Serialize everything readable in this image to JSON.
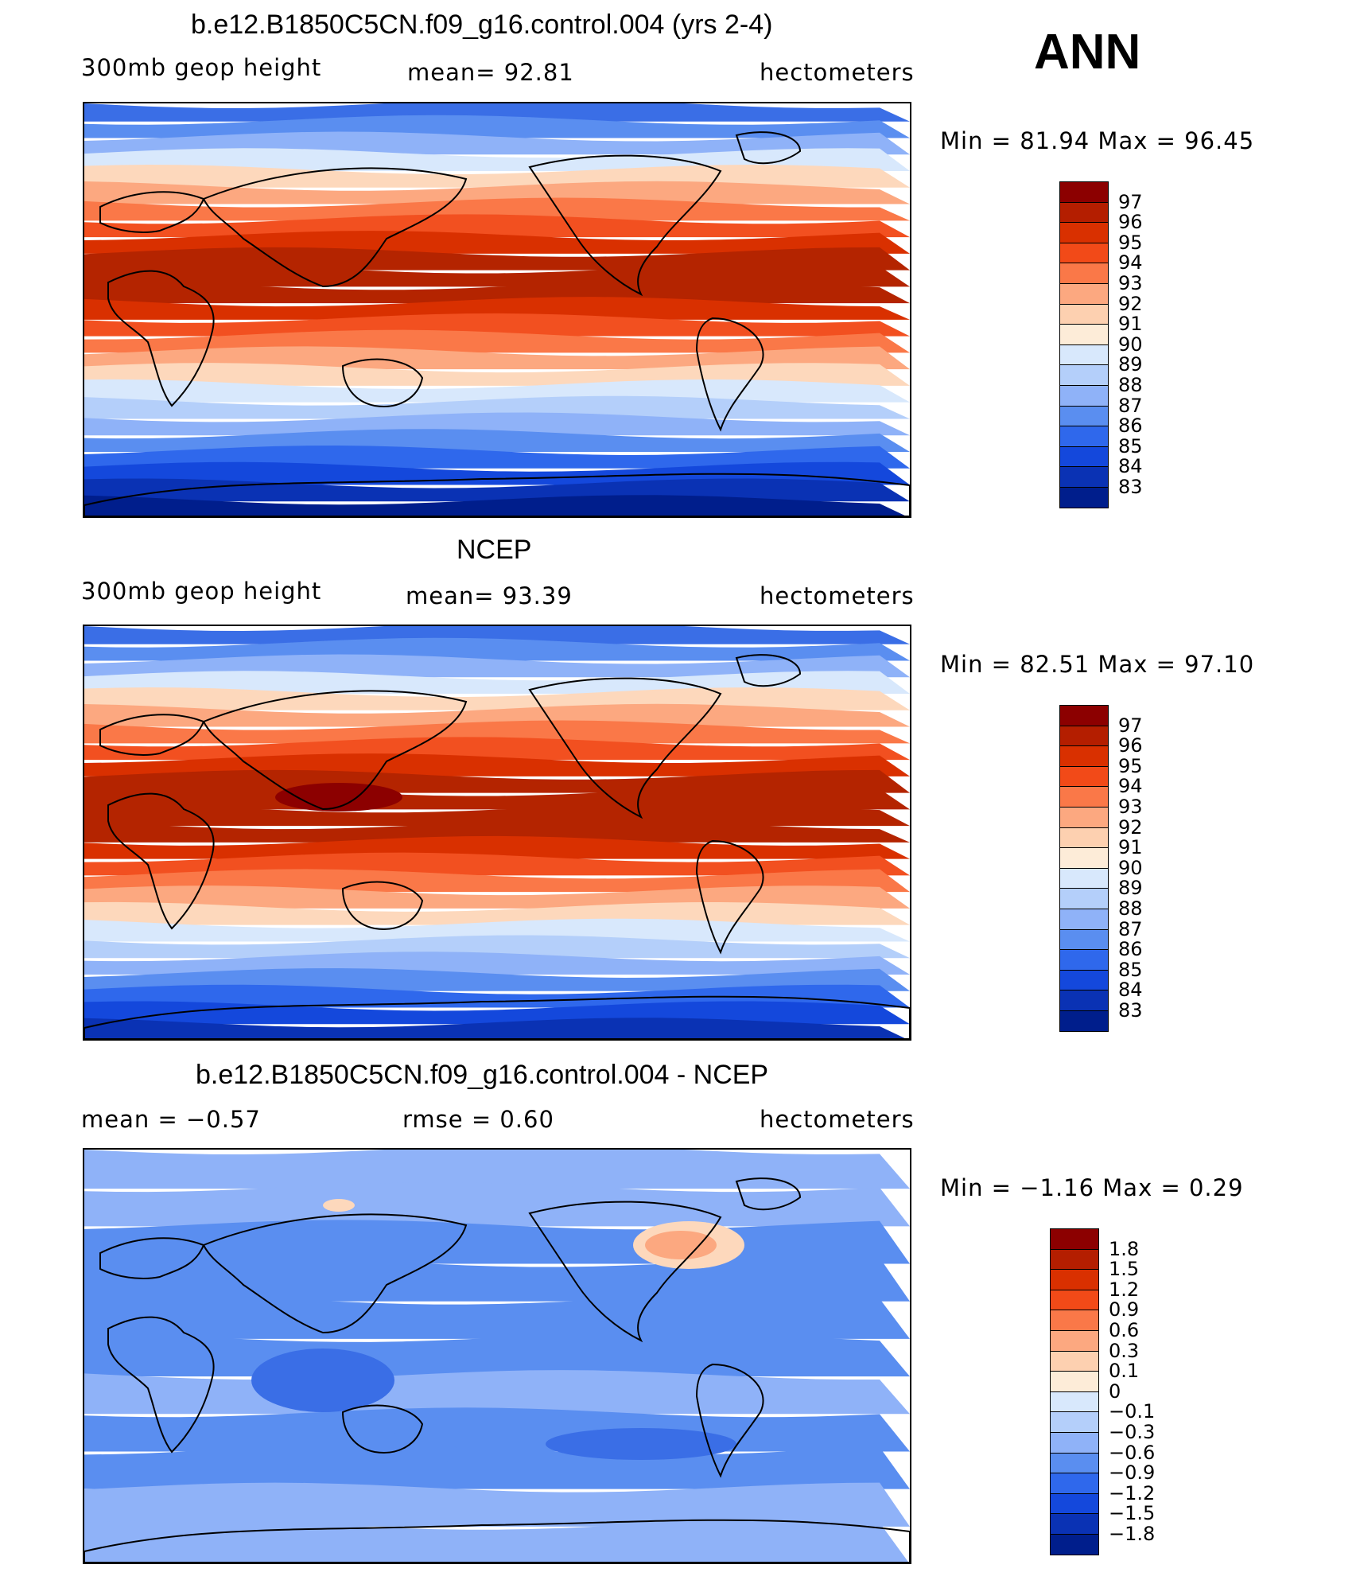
{
  "season_label": "ANN",
  "panels": [
    {
      "id": "model",
      "title": "b.e12.B1850C5CN.f09_g16.control.004 (yrs 2-4)",
      "left_label": "300mb  geop  height",
      "center_label": "mean=   92.81",
      "right_label": "hectometers",
      "min_max": "Min  =    81.94  Max  =    96.45",
      "legend_levels": [
        "97",
        "96",
        "95",
        "94",
        "93",
        "92",
        "91",
        "90",
        "89",
        "88",
        "87",
        "86",
        "85",
        "84",
        "83"
      ],
      "legend_colors": [
        "#8c0000",
        "#b41e00",
        "#d93000",
        "#f24a18",
        "#fa7848",
        "#fca880",
        "#fdd0b0",
        "#fdecd8",
        "#d8e8fc",
        "#b4cffa",
        "#8fb2f8",
        "#5a8ef0",
        "#2f68ec",
        "#1448dc",
        "#0a32b4",
        "#001e8c"
      ],
      "bands_top_to_bottom": [
        "#3a6ee6",
        "#5a8ef0",
        "#8fb2f8",
        "#d8e8fc",
        "#fdd8bc",
        "#fca880",
        "#fa7848",
        "#f25020",
        "#d93000",
        "#b42400",
        "#b42400",
        "#b42400",
        "#d93000",
        "#f25020",
        "#fa7848",
        "#fca880",
        "#fdd8bc",
        "#d8e8fc",
        "#b4cffa",
        "#8fb2f8",
        "#5a8ef0",
        "#2f68ec",
        "#1448dc",
        "#0a32b4",
        "#001e8c"
      ]
    },
    {
      "id": "obs",
      "title": "NCEP",
      "left_label": "300mb  geop  height",
      "center_label": "mean=   93.39",
      "right_label": "hectometers",
      "min_max": "Min  =    82.51  Max  =    97.10",
      "legend_levels": [
        "97",
        "96",
        "95",
        "94",
        "93",
        "92",
        "91",
        "90",
        "89",
        "88",
        "87",
        "86",
        "85",
        "84",
        "83"
      ],
      "legend_colors": [
        "#8c0000",
        "#b41e00",
        "#d93000",
        "#f24a18",
        "#fa7848",
        "#fca880",
        "#fdd0b0",
        "#fdecd8",
        "#d8e8fc",
        "#b4cffa",
        "#8fb2f8",
        "#5a8ef0",
        "#2f68ec",
        "#1448dc",
        "#0a32b4",
        "#001e8c"
      ],
      "bands_top_to_bottom": [
        "#3a6ee6",
        "#5a8ef0",
        "#8fb2f8",
        "#d8e8fc",
        "#fdd8bc",
        "#fca880",
        "#fa7848",
        "#f25020",
        "#d93000",
        "#b42400",
        "#b42400",
        "#b42400",
        "#b42400",
        "#d93000",
        "#f25020",
        "#fa7848",
        "#fca880",
        "#fdd8bc",
        "#d8e8fc",
        "#b4cffa",
        "#8fb2f8",
        "#5a8ef0",
        "#2f68ec",
        "#1448dc",
        "#0a32b4"
      ]
    },
    {
      "id": "diff",
      "title": "b.e12.B1850C5CN.f09_g16.control.004 - NCEP",
      "left_label": "mean  =    −0.57",
      "center_label": "rmse  =     0.60",
      "right_label": "hectometers",
      "min_max": "Min  =    −1.16  Max  =      0.29",
      "legend_levels": [
        "1.8",
        "1.5",
        "1.2",
        "0.9",
        "0.6",
        "0.3",
        "0.1",
        "0",
        "−0.1",
        "−0.3",
        "−0.6",
        "−0.9",
        "−1.2",
        "−1.5",
        "−1.8"
      ],
      "legend_colors": [
        "#8c0000",
        "#b41e00",
        "#d93000",
        "#f24a18",
        "#fa7848",
        "#fca880",
        "#fdd0b0",
        "#fdecd8",
        "#d8e8fc",
        "#b4cffa",
        "#8fb2f8",
        "#5a8ef0",
        "#2f68ec",
        "#1448dc",
        "#0a32b4",
        "#001e8c"
      ],
      "bands_top_to_bottom": [
        "#8fb2f8",
        "#8fb2f8",
        "#5a8ef0",
        "#5a8ef0",
        "#5a8ef0",
        "#5a8ef0",
        "#8fb2f8",
        "#5a8ef0",
        "#5a8ef0",
        "#8fb2f8",
        "#8fb2f8"
      ]
    }
  ]
}
